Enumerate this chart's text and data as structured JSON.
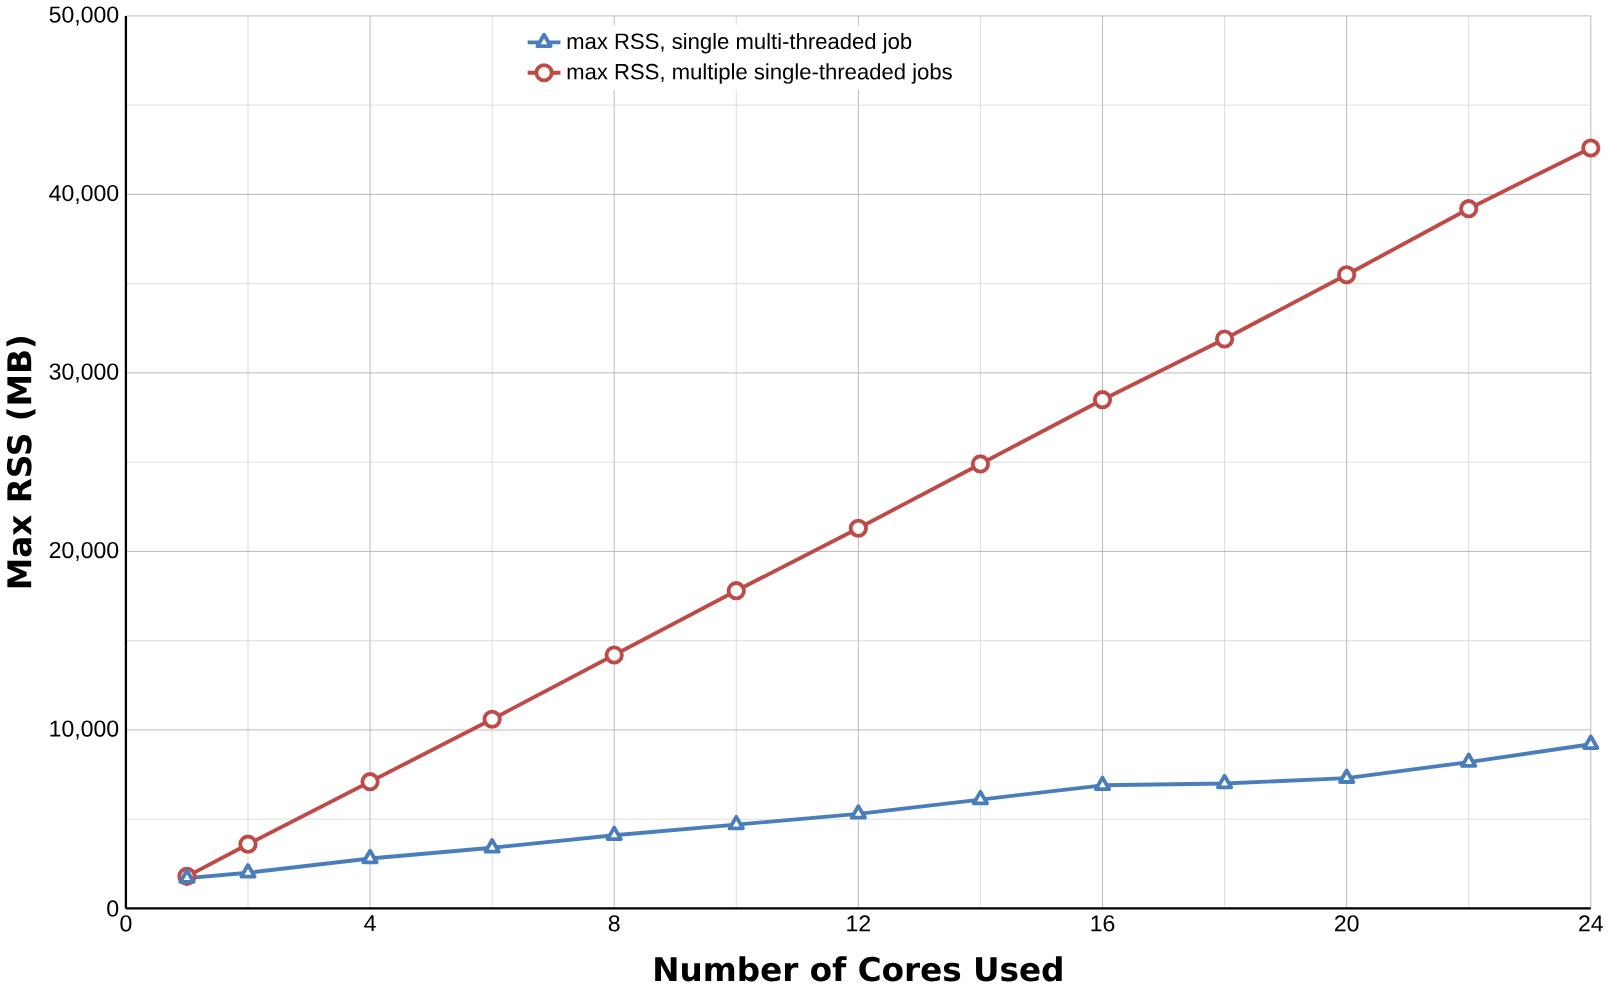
{
  "chart_data": {
    "type": "line",
    "xlabel": "Number of Cores Used",
    "ylabel": "Max RSS (MB)",
    "x": [
      1,
      2,
      4,
      6,
      8,
      10,
      12,
      14,
      16,
      18,
      20,
      22,
      24
    ],
    "series": [
      {
        "name": "max RSS, single multi-threaded job",
        "color": "#4a7ebb",
        "marker": "triangle",
        "values": [
          1700,
          2000,
          2800,
          3400,
          4100,
          4700,
          5300,
          6100,
          6900,
          7000,
          7300,
          8200,
          9200
        ]
      },
      {
        "name": "max RSS, multiple single-threaded jobs",
        "color": "#be4b48",
        "marker": "circle",
        "values": [
          1800,
          3600,
          7100,
          10600,
          14200,
          17800,
          21300,
          24900,
          28500,
          31900,
          35500,
          39200,
          42600
        ]
      }
    ],
    "xlim": [
      0,
      24
    ],
    "xticks": [
      0,
      4,
      8,
      12,
      16,
      20,
      24
    ],
    "ylim": [
      0,
      50000
    ],
    "yticks": [
      {
        "value": 0,
        "label": "0"
      },
      {
        "value": 10000,
        "label": "10,000"
      },
      {
        "value": 20000,
        "label": "20,000"
      },
      {
        "value": 30000,
        "label": "30,000"
      },
      {
        "value": 40000,
        "label": "40,000"
      },
      {
        "value": 50000,
        "label": "50,000"
      }
    ],
    "grid": true,
    "legend": "top",
    "line_style": "solid"
  }
}
